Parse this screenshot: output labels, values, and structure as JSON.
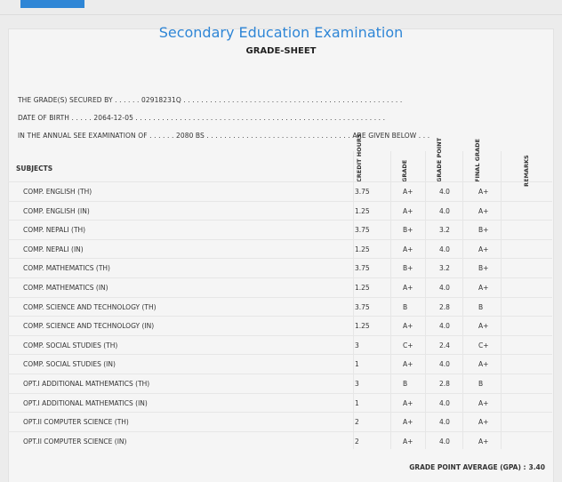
{
  "exam": {
    "title": "Secondary Education Examination",
    "subtitle": "GRADE-SHEET",
    "secured_by_line": "THE GRADE(S) SECURED BY . . . . . . 02918231Q . . . . . . . . . . . . . . . . . . . . . . . . . . . . . . . . . . . . . . . . . . . . . . . . . .",
    "dob_line": "DATE OF BIRTH . . . . . 2064-12-05 . . . . . . . . . . . . . . . . . . . . . . . . . . . . . . . . . . . . . . . . . . . . . . . . . . . . . . . . .",
    "annual_line": "IN THE ANNUAL SEE EXAMINATION OF . . . . . . 2080 BS . . . . . . . . . . . . . . . . . . . . . . . . . . . . . . . . . ARE GIVEN BELOW . . ."
  },
  "table": {
    "headers": {
      "subjects": "SUBJECTS",
      "credit_hours": "CREDIT HOURS",
      "grade": "GRADE",
      "grade_point": "GRADE POINT",
      "final_grade": "FINAL GRADE",
      "remarks": "REMARKS"
    },
    "rows": [
      {
        "subject": "COMP. ENGLISH (TH)",
        "credit": "3.75",
        "grade": "A+",
        "point": "4.0",
        "final": "A+"
      },
      {
        "subject": "COMP. ENGLISH (IN)",
        "credit": "1.25",
        "grade": "A+",
        "point": "4.0",
        "final": "A+"
      },
      {
        "subject": "COMP. NEPALI (TH)",
        "credit": "3.75",
        "grade": "B+",
        "point": "3.2",
        "final": "B+"
      },
      {
        "subject": "COMP. NEPALI (IN)",
        "credit": "1.25",
        "grade": "A+",
        "point": "4.0",
        "final": "A+"
      },
      {
        "subject": "COMP. MATHEMATICS (TH)",
        "credit": "3.75",
        "grade": "B+",
        "point": "3.2",
        "final": "B+"
      },
      {
        "subject": "COMP. MATHEMATICS (IN)",
        "credit": "1.25",
        "grade": "A+",
        "point": "4.0",
        "final": "A+"
      },
      {
        "subject": "COMP. SCIENCE AND TECHNOLOGY (TH)",
        "credit": "3.75",
        "grade": "B",
        "point": "2.8",
        "final": "B"
      },
      {
        "subject": "COMP. SCIENCE AND TECHNOLOGY (IN)",
        "credit": "1.25",
        "grade": "A+",
        "point": "4.0",
        "final": "A+"
      },
      {
        "subject": "COMP. SOCIAL STUDIES (TH)",
        "credit": "3",
        "grade": "C+",
        "point": "2.4",
        "final": "C+"
      },
      {
        "subject": "COMP. SOCIAL STUDIES (IN)",
        "credit": "1",
        "grade": "A+",
        "point": "4.0",
        "final": "A+"
      },
      {
        "subject": "OPT.I ADDITIONAL MATHEMATICS (TH)",
        "credit": "3",
        "grade": "B",
        "point": "2.8",
        "final": "B"
      },
      {
        "subject": "OPT.I ADDITIONAL MATHEMATICS (IN)",
        "credit": "1",
        "grade": "A+",
        "point": "4.0",
        "final": "A+"
      },
      {
        "subject": "OPT.II COMPUTER SCIENCE (TH)",
        "credit": "2",
        "grade": "A+",
        "point": "4.0",
        "final": "A+"
      },
      {
        "subject": "OPT.II COMPUTER SCIENCE (IN)",
        "credit": "2",
        "grade": "A+",
        "point": "4.0",
        "final": "A+"
      }
    ]
  },
  "gpa": {
    "label": "GRADE POINT AVERAGE (GPA) :",
    "value": "3.40"
  }
}
